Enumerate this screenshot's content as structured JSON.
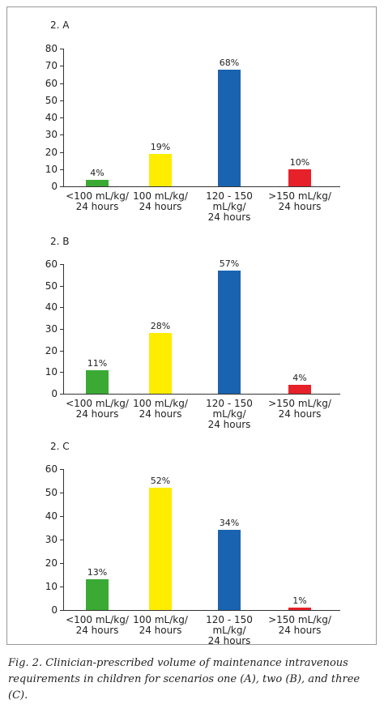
{
  "chart_data": [
    {
      "type": "bar",
      "title": "2. A",
      "categories": [
        "<100 mL/kg/\n24 hours",
        "100 mL/kg/\n24 hours",
        "120 - 150 mL/kg/\n24 hours",
        ">150 mL/kg/\n24 hours"
      ],
      "values": [
        4,
        19,
        68,
        10
      ],
      "value_labels": [
        "4%",
        "19%",
        "68%",
        "10%"
      ],
      "colors": [
        "#3aaa35",
        "#ffed00",
        "#1a63b0",
        "#e62129"
      ],
      "ylim": [
        0,
        80
      ],
      "yticks": [
        0,
        10,
        20,
        30,
        40,
        50,
        60,
        70,
        80
      ]
    },
    {
      "type": "bar",
      "title": "2. B",
      "categories": [
        "<100 mL/kg/\n24 hours",
        "100 mL/kg/\n24 hours",
        "120 - 150 mL/kg/\n24 hours",
        ">150 mL/kg/\n24 hours"
      ],
      "values": [
        11,
        28,
        57,
        4
      ],
      "value_labels": [
        "11%",
        "28%",
        "57%",
        "4%"
      ],
      "colors": [
        "#3aaa35",
        "#ffed00",
        "#1a63b0",
        "#e62129"
      ],
      "ylim": [
        0,
        60
      ],
      "yticks": [
        0,
        10,
        20,
        30,
        40,
        50,
        60
      ]
    },
    {
      "type": "bar",
      "title": "2. C",
      "categories": [
        "<100 mL/kg/\n24 hours",
        "100 mL/kg/\n24 hours",
        "120 - 150 mL/kg/\n24 hours",
        ">150 mL/kg/\n24 hours"
      ],
      "values": [
        13,
        52,
        34,
        1
      ],
      "value_labels": [
        "13%",
        "52%",
        "34%",
        "1%"
      ],
      "colors": [
        "#3aaa35",
        "#ffed00",
        "#1a63b0",
        "#e62129"
      ],
      "ylim": [
        0,
        60
      ],
      "yticks": [
        0,
        10,
        20,
        30,
        40,
        50,
        60
      ]
    }
  ],
  "caption": "Fig. 2. Clinician-prescribed volume of maintenance intravenous requirements in children for scenarios one (A), two (B), and three (C)."
}
